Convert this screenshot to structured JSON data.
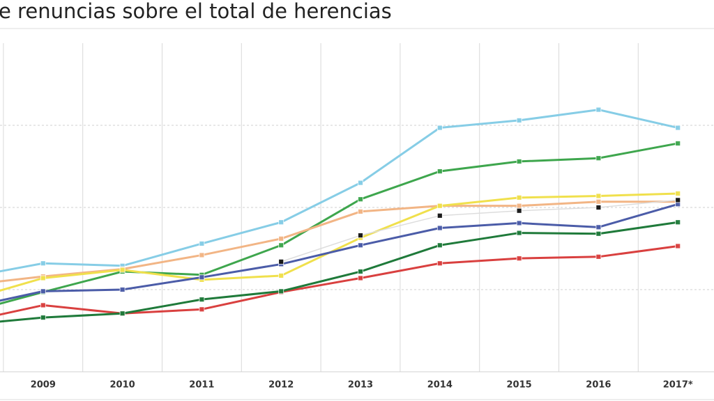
{
  "chart_data": {
    "type": "line",
    "title": "e renuncias sobre el total de herencias",
    "categories": [
      null,
      "2009",
      "2010",
      "2011",
      "2012",
      "2013",
      "2014",
      "2015",
      "2016",
      "2017*"
    ],
    "ylim": [
      0,
      4
    ],
    "yticks": [
      1,
      2,
      3
    ],
    "grid": true,
    "series": [
      {
        "color": "#86cde6",
        "values": [
          1.14,
          1.32,
          1.29,
          1.56,
          1.82,
          2.3,
          2.97,
          3.06,
          3.19,
          2.97
        ]
      },
      {
        "color": "#3ea64d",
        "values": [
          0.71,
          0.97,
          1.22,
          1.18,
          1.54,
          2.1,
          2.44,
          2.56,
          2.6,
          2.78
        ]
      },
      {
        "color": "#f2b585",
        "values": [
          1.05,
          1.16,
          1.25,
          1.42,
          1.62,
          1.95,
          2.02,
          2.02,
          2.07,
          2.07
        ]
      },
      {
        "color": "#f0e04c",
        "values": [
          0.86,
          1.14,
          1.24,
          1.12,
          1.17,
          1.63,
          2.02,
          2.12,
          2.14,
          2.17
        ]
      },
      {
        "color": "#4b5ca8",
        "values": [
          0.77,
          0.98,
          1.0,
          1.15,
          1.31,
          1.54,
          1.75,
          1.81,
          1.76,
          2.04
        ]
      },
      {
        "color": "#d9403f",
        "values": [
          0.6,
          0.81,
          0.71,
          0.76,
          0.97,
          1.14,
          1.32,
          1.38,
          1.4,
          1.53
        ]
      },
      {
        "color": "#1f7a3a",
        "values": [
          0.57,
          0.66,
          0.71,
          0.88,
          0.98,
          1.22,
          1.54,
          1.69,
          1.68,
          1.82
        ]
      },
      {
        "color": "#111111",
        "values": [
          null,
          null,
          null,
          null,
          1.34,
          1.66,
          1.9,
          1.96,
          2.0,
          2.09
        ]
      }
    ]
  }
}
